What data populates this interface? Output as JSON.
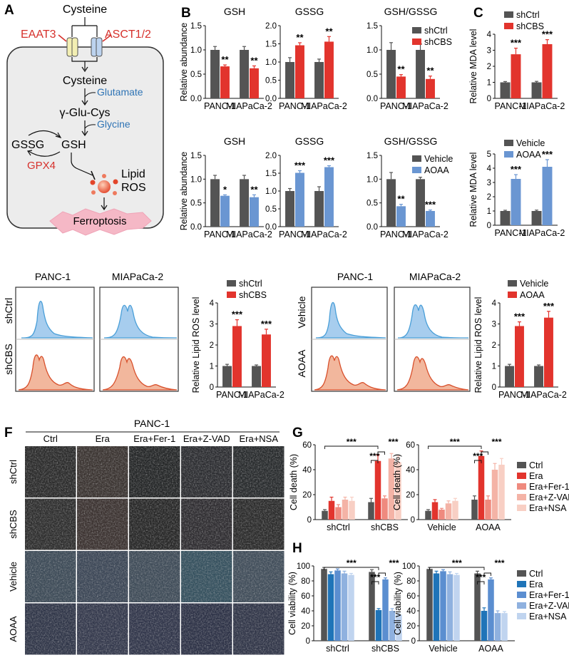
{
  "colors": {
    "ctrl": "#545454",
    "red": "#e2342d",
    "blue": "#6a96d2",
    "pink1": "#ef8a7e",
    "pink2": "#f4b3a6",
    "pink3": "#f8cfc4",
    "blue1": "#1f74b8",
    "blue2": "#5b8ed0",
    "blue3": "#8fb1df",
    "blue4": "#c0d4ef",
    "histBlueLine": "#4a9fd8",
    "histBlueFill": "#a7cdee",
    "histRedLine": "#d8502c",
    "histRedFill": "#f2b79d",
    "panelA_red": "#d6302b",
    "panelA_blue": "#2f74b5",
    "brown": "#8b3a2e"
  },
  "panelA": {
    "label": "A",
    "cysteine_top": "Cysteine",
    "eaat3": "EAAT3",
    "asct": "ASCT1/2",
    "cysteine_in": "Cysteine",
    "glutamate": "Glutamate",
    "gglucys": "γ-Glu-Cys",
    "glycine": "Glycine",
    "gssg": "GSSG",
    "gsh": "GSH",
    "gpx4": "GPX4",
    "lipid": "Lipid",
    "ros": "ROS",
    "ferroptosis": "Ferroptosis"
  },
  "panelLabels": {
    "B": "B",
    "C": "C",
    "F": "F",
    "G": "G",
    "H": "H"
  },
  "shared": {
    "ylabel_rel": "Relative abundance",
    "ylabel_mda": "Relative MDA level",
    "ylabel_ros": "Relative Lipid ROS level",
    "ylabel_death": "Cell death (%)",
    "ylabel_viab": "Cell viability (%)",
    "panc1": "PANC-1",
    "mia": "MIAPaCa-2"
  },
  "flow": {
    "left": {
      "col1": "PANC-1",
      "col2": "MIAPaCa-2",
      "row1": "shCtrl",
      "row2": "shCBS"
    },
    "right": {
      "col1": "PANC-1",
      "col2": "MIAPaCa-2",
      "row1": "Vehicle",
      "row2": "AOAA"
    }
  },
  "panelF": {
    "title": "PANC-1",
    "cols": [
      "Ctrl",
      "Era",
      "Era+Fer-1",
      "Era+Z-VAD",
      "Era+NSA"
    ],
    "rows": [
      "shCtrl",
      "shCBS",
      "Vehicle",
      "AOAA"
    ]
  },
  "chart_data": [
    {
      "id": "b1",
      "type": "bar",
      "title": "GSH",
      "ylabel": "Relative abundance",
      "ylim": [
        0,
        1.5
      ],
      "yticks": [
        0.0,
        0.5,
        1.0,
        1.5
      ],
      "categories": [
        "PANC-1",
        "MIAPaCa-2"
      ],
      "series": [
        {
          "name": "shCtrl",
          "color": "ctrl",
          "values": [
            1.0,
            1.0
          ],
          "err": [
            0.07,
            0.07
          ]
        },
        {
          "name": "shCBS",
          "color": "red",
          "values": [
            0.66,
            0.62
          ],
          "err": [
            0.03,
            0.05
          ]
        }
      ],
      "annotations": [
        "**",
        "**"
      ]
    },
    {
      "id": "b2",
      "type": "bar",
      "title": "GSSG",
      "ylabel": "",
      "ylim": [
        0,
        2.0
      ],
      "yticks": [
        0.0,
        0.5,
        1.0,
        1.5,
        2.0
      ],
      "categories": [
        "PANC-1",
        "MIAPaCa-2"
      ],
      "series": [
        {
          "name": "shCtrl",
          "color": "ctrl",
          "values": [
            1.0,
            1.0
          ],
          "err": [
            0.12,
            0.08
          ]
        },
        {
          "name": "shCBS",
          "color": "red",
          "values": [
            1.46,
            1.56
          ],
          "err": [
            0.07,
            0.14
          ]
        }
      ],
      "annotations": [
        "**",
        "**"
      ]
    },
    {
      "id": "b3",
      "type": "bar",
      "title": "GSH/GSSG",
      "ylabel": "",
      "ylim": [
        0,
        1.5
      ],
      "yticks": [
        0.0,
        0.5,
        1.0,
        1.5
      ],
      "categories": [
        "PANC-1",
        "MIAPaCa-2"
      ],
      "series": [
        {
          "name": "shCtrl",
          "color": "ctrl",
          "values": [
            1.0,
            1.0
          ],
          "err": [
            0.15,
            0.12
          ]
        },
        {
          "name": "shCBS",
          "color": "red",
          "values": [
            0.45,
            0.4
          ],
          "err": [
            0.04,
            0.06
          ]
        }
      ],
      "annotations": [
        "**",
        "**"
      ],
      "legend": [
        "shCtrl",
        "shCBS"
      ]
    },
    {
      "id": "b4",
      "type": "bar",
      "title": "GSH",
      "ylabel": "Relative abundance",
      "ylim": [
        0,
        1.5
      ],
      "yticks": [
        0.0,
        0.5,
        1.0,
        1.5
      ],
      "categories": [
        "PANC-1",
        "MIAPaCa-2"
      ],
      "series": [
        {
          "name": "Vehicle",
          "color": "ctrl",
          "values": [
            1.0,
            1.0
          ],
          "err": [
            0.08,
            0.08
          ]
        },
        {
          "name": "AOAA",
          "color": "blue",
          "values": [
            0.65,
            0.62
          ],
          "err": [
            0.02,
            0.05
          ]
        }
      ],
      "annotations": [
        "*",
        "**"
      ]
    },
    {
      "id": "b5",
      "type": "bar",
      "title": "GSSG",
      "ylabel": "",
      "ylim": [
        0,
        2.0
      ],
      "yticks": [
        0.0,
        0.5,
        1.0,
        1.5,
        2.0
      ],
      "categories": [
        "PANC-1",
        "MIAPaCa-2"
      ],
      "series": [
        {
          "name": "Vehicle",
          "color": "ctrl",
          "values": [
            1.0,
            1.0
          ],
          "err": [
            0.07,
            0.12
          ]
        },
        {
          "name": "AOAA",
          "color": "blue",
          "values": [
            1.51,
            1.67
          ],
          "err": [
            0.06,
            0.04
          ]
        }
      ],
      "annotations": [
        "***",
        "***"
      ]
    },
    {
      "id": "b6",
      "type": "bar",
      "title": "GSH/GSSG",
      "ylabel": "",
      "ylim": [
        0,
        1.5
      ],
      "yticks": [
        0.0,
        0.5,
        1.0,
        1.5
      ],
      "categories": [
        "PANC-1",
        "MIAPaCa-2"
      ],
      "series": [
        {
          "name": "Vehicle",
          "color": "ctrl",
          "values": [
            1.0,
            1.0
          ],
          "err": [
            0.14,
            0.04
          ]
        },
        {
          "name": "AOAA",
          "color": "blue",
          "values": [
            0.43,
            0.33
          ],
          "err": [
            0.04,
            0.02
          ]
        }
      ],
      "annotations": [
        "**",
        "***"
      ],
      "legend": [
        "Vehicle",
        "AOAA"
      ]
    },
    {
      "id": "c1",
      "type": "bar",
      "title": "",
      "ylabel": "Relative MDA level",
      "ylim": [
        0,
        4
      ],
      "yticks": [
        0,
        1,
        2,
        3,
        4
      ],
      "categories": [
        "PANC-1",
        "MIAPaCa-2"
      ],
      "series": [
        {
          "name": "shCtrl",
          "color": "ctrl",
          "values": [
            1.0,
            1.0
          ],
          "err": [
            0.05,
            0.06
          ]
        },
        {
          "name": "shCBS",
          "color": "red",
          "values": [
            2.75,
            3.38
          ],
          "err": [
            0.38,
            0.28
          ]
        }
      ],
      "annotations": [
        "***",
        "***"
      ],
      "legend": [
        "shCtrl",
        "shCBS"
      ]
    },
    {
      "id": "c2",
      "type": "bar",
      "title": "",
      "ylabel": "Relative MDA level",
      "ylim": [
        0,
        5
      ],
      "yticks": [
        0,
        1,
        2,
        3,
        4,
        5
      ],
      "categories": [
        "PANC-1",
        "MIAPaCa-2"
      ],
      "series": [
        {
          "name": "Vehicle",
          "color": "ctrl",
          "values": [
            1.0,
            1.0
          ],
          "err": [
            0.05,
            0.06
          ]
        },
        {
          "name": "AOAA",
          "color": "blue",
          "values": [
            3.25,
            4.1
          ],
          "err": [
            0.3,
            0.5
          ]
        }
      ],
      "annotations": [
        "***",
        "***"
      ],
      "legend": [
        "Vehicle",
        "AOAA"
      ]
    },
    {
      "id": "d1",
      "type": "bar",
      "title": "",
      "ylabel": "Relative Lipid ROS level",
      "ylim": [
        0,
        4
      ],
      "yticks": [
        0,
        1,
        2,
        3,
        4
      ],
      "categories": [
        "PANC-1",
        "MIAPaCa-2"
      ],
      "series": [
        {
          "name": "shCtrl",
          "color": "ctrl",
          "values": [
            1.0,
            1.0
          ],
          "err": [
            0.08,
            0.05
          ]
        },
        {
          "name": "shCBS",
          "color": "red",
          "values": [
            2.9,
            2.5
          ],
          "err": [
            0.3,
            0.25
          ]
        }
      ],
      "annotations": [
        "***",
        "***"
      ],
      "legend": [
        "shCtrl",
        "shCBS"
      ]
    },
    {
      "id": "d2",
      "type": "bar",
      "title": "",
      "ylabel": "Relative Lipid ROS level",
      "ylim": [
        0,
        4
      ],
      "yticks": [
        0,
        1,
        2,
        3,
        4
      ],
      "categories": [
        "PANC-1",
        "MIAPaCa-2"
      ],
      "series": [
        {
          "name": "Vehicle",
          "color": "ctrl",
          "values": [
            1.0,
            1.0
          ],
          "err": [
            0.08,
            0.05
          ]
        },
        {
          "name": "AOAA",
          "color": "red",
          "values": [
            2.9,
            3.3
          ],
          "err": [
            0.2,
            0.3
          ]
        }
      ],
      "annotations": [
        "***",
        "***"
      ],
      "legend": [
        "Vehicle",
        "AOAA"
      ]
    },
    {
      "id": "g1",
      "type": "bar",
      "title": "",
      "ylabel": "Cell death (%)",
      "ylim": [
        0,
        60
      ],
      "yticks": [
        0,
        20,
        40,
        60
      ],
      "categories": [
        "shCtrl",
        "shCBS"
      ],
      "series": [
        {
          "name": "Ctrl",
          "color": "ctrl",
          "values": [
            7,
            14
          ],
          "err": [
            1,
            3
          ]
        },
        {
          "name": "Era",
          "color": "red",
          "values": [
            15,
            47
          ],
          "err": [
            3,
            5
          ]
        },
        {
          "name": "Era+Fer-1",
          "color": "pink1",
          "values": [
            10,
            17
          ],
          "err": [
            2,
            2
          ]
        },
        {
          "name": "Era+Z-VAD",
          "color": "pink2",
          "values": [
            16,
            49
          ],
          "err": [
            2,
            4
          ]
        },
        {
          "name": "Era+NSA",
          "color": "pink3",
          "values": [
            15,
            46
          ],
          "err": [
            3,
            5
          ]
        }
      ],
      "sig": [
        "***",
        "***",
        "***"
      ]
    },
    {
      "id": "g2",
      "type": "bar",
      "title": "",
      "ylabel": "Cell death (%)",
      "ylim": [
        0,
        60
      ],
      "yticks": [
        0,
        20,
        40,
        60
      ],
      "categories": [
        "Vehicle",
        "AOAA"
      ],
      "series": [
        {
          "name": "Ctrl",
          "color": "ctrl",
          "values": [
            7,
            16
          ],
          "err": [
            1,
            3
          ]
        },
        {
          "name": "Era",
          "color": "red",
          "values": [
            14,
            51
          ],
          "err": [
            2,
            4
          ]
        },
        {
          "name": "Era+Fer-1",
          "color": "pink1",
          "values": [
            8,
            16
          ],
          "err": [
            1,
            3
          ]
        },
        {
          "name": "Era+Z-VAD",
          "color": "pink2",
          "values": [
            13,
            40
          ],
          "err": [
            2,
            5
          ]
        },
        {
          "name": "Era+NSA",
          "color": "pink3",
          "values": [
            15,
            44
          ],
          "err": [
            2,
            5
          ]
        }
      ],
      "sig": [
        "***",
        "***",
        "***"
      ],
      "legend": [
        "Ctrl",
        "Era",
        "Era+Fer-1",
        "Era+Z-VAD",
        "Era+NSA"
      ]
    },
    {
      "id": "h1",
      "type": "bar",
      "title": "",
      "ylabel": "Cell viability (%)",
      "ylim": [
        0,
        100
      ],
      "yticks": [
        0,
        20,
        40,
        60,
        80,
        100
      ],
      "categories": [
        "shCtrl",
        "shCBS"
      ],
      "series": [
        {
          "name": "Ctrl",
          "color": "ctrl",
          "values": [
            96,
            92
          ],
          "err": [
            2,
            3
          ]
        },
        {
          "name": "Era",
          "color": "blue1",
          "values": [
            89,
            41
          ],
          "err": [
            3,
            2
          ]
        },
        {
          "name": "Era+Fer-1",
          "color": "blue2",
          "values": [
            94,
            82
          ],
          "err": [
            2,
            2
          ]
        },
        {
          "name": "Era+Z-VAD",
          "color": "blue3",
          "values": [
            90,
            40
          ],
          "err": [
            3,
            3
          ]
        },
        {
          "name": "Era+NSA",
          "color": "blue4",
          "values": [
            88,
            35
          ],
          "err": [
            2,
            2
          ]
        }
      ],
      "sig": [
        "***",
        "***",
        "***"
      ]
    },
    {
      "id": "h2",
      "type": "bar",
      "title": "",
      "ylabel": "Cell viability (%)",
      "ylim": [
        0,
        100
      ],
      "yticks": [
        0,
        20,
        40,
        60,
        80,
        100
      ],
      "categories": [
        "Vehicle",
        "AOAA"
      ],
      "series": [
        {
          "name": "Ctrl",
          "color": "ctrl",
          "values": [
            96,
            90
          ],
          "err": [
            2,
            3
          ]
        },
        {
          "name": "Era",
          "color": "blue1",
          "values": [
            90,
            40
          ],
          "err": [
            3,
            4
          ]
        },
        {
          "name": "Era+Fer-1",
          "color": "blue2",
          "values": [
            93,
            82
          ],
          "err": [
            2,
            2
          ]
        },
        {
          "name": "Era+Z-VAD",
          "color": "blue3",
          "values": [
            89,
            37
          ],
          "err": [
            3,
            3
          ]
        },
        {
          "name": "Era+NSA",
          "color": "blue4",
          "values": [
            88,
            37
          ],
          "err": [
            2,
            2
          ]
        }
      ],
      "sig": [
        "***",
        "***",
        "***"
      ],
      "legend": [
        "Ctrl",
        "Era",
        "Era+Fer-1",
        "Era+Z-VAD",
        "Era+NSA"
      ]
    }
  ]
}
